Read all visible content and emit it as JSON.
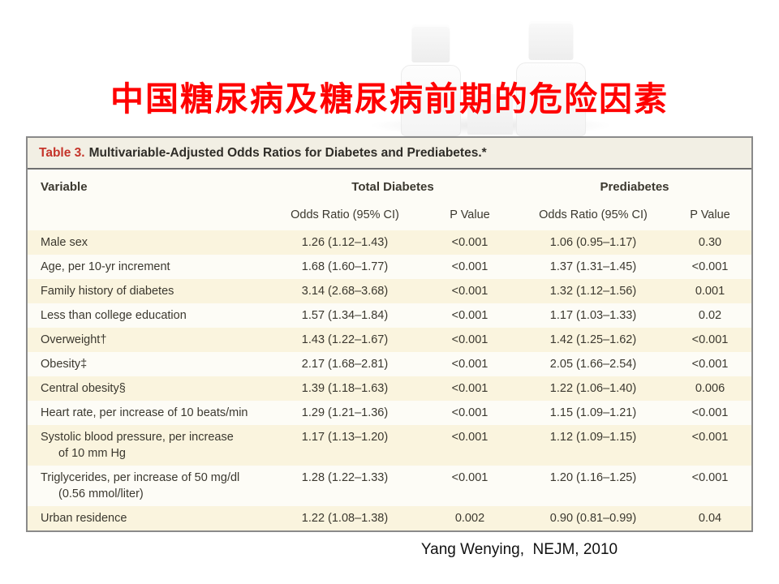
{
  "slide": {
    "title": "中国糖尿病及糖尿病前期的危险因素",
    "title_color": "#ff0000",
    "citation": "Yang Wenying,  NEJM, 2010",
    "background_icons": [
      "medicine-vial-icon",
      "medicine-vial-icon"
    ]
  },
  "table": {
    "label": "Table 3.",
    "label_color": "#c5342a",
    "caption": "Multivariable-Adjusted Odds Ratios for Diabetes and Prediabetes.*",
    "columns": {
      "variable": "Variable",
      "group1": "Total Diabetes",
      "group2": "Prediabetes",
      "odds_ratio": "Odds Ratio (95% CI)",
      "p_value": "P Value"
    },
    "colors": {
      "stripe": "#faf4de",
      "caption_bg": "#f2efe4",
      "border": "#8a8a8a",
      "text": "#3b382f"
    },
    "rows": [
      {
        "variable": "Male sex",
        "line2": "",
        "or1": "1.26 (1.12–1.43)",
        "p1": "<0.001",
        "or2": "1.06 (0.95–1.17)",
        "p2": "0.30"
      },
      {
        "variable": "Age, per 10-yr increment",
        "line2": "",
        "or1": "1.68 (1.60–1.77)",
        "p1": "<0.001",
        "or2": "1.37 (1.31–1.45)",
        "p2": "<0.001"
      },
      {
        "variable": "Family history of diabetes",
        "line2": "",
        "or1": "3.14 (2.68–3.68)",
        "p1": "<0.001",
        "or2": "1.32 (1.12–1.56)",
        "p2": "0.001"
      },
      {
        "variable": "Less than college education",
        "line2": "",
        "or1": "1.57 (1.34–1.84)",
        "p1": "<0.001",
        "or2": "1.17 (1.03–1.33)",
        "p2": "0.02"
      },
      {
        "variable": "Overweight†",
        "line2": "",
        "or1": "1.43 (1.22–1.67)",
        "p1": "<0.001",
        "or2": "1.42 (1.25–1.62)",
        "p2": "<0.001"
      },
      {
        "variable": "Obesity‡",
        "line2": "",
        "or1": "2.17 (1.68–2.81)",
        "p1": "<0.001",
        "or2": "2.05 (1.66–2.54)",
        "p2": "<0.001"
      },
      {
        "variable": "Central obesity§",
        "line2": "",
        "or1": "1.39 (1.18–1.63)",
        "p1": "<0.001",
        "or2": "1.22 (1.06–1.40)",
        "p2": "0.006"
      },
      {
        "variable": "Heart rate, per increase of 10 beats/min",
        "line2": "",
        "or1": "1.29 (1.21–1.36)",
        "p1": "<0.001",
        "or2": "1.15 (1.09–1.21)",
        "p2": "<0.001"
      },
      {
        "variable": "Systolic blood pressure, per increase",
        "line2": "of 10 mm Hg",
        "or1": "1.17 (1.13–1.20)",
        "p1": "<0.001",
        "or2": "1.12 (1.09–1.15)",
        "p2": "<0.001"
      },
      {
        "variable": "Triglycerides, per increase of 50 mg/dl",
        "line2": "(0.56 mmol/liter)",
        "or1": "1.28 (1.22–1.33)",
        "p1": "<0.001",
        "or2": "1.20 (1.16–1.25)",
        "p2": "<0.001"
      },
      {
        "variable": "Urban residence",
        "line2": "",
        "or1": "1.22 (1.08–1.38)",
        "p1": "0.002",
        "or2": "0.90 (0.81–0.99)",
        "p2": "0.04"
      }
    ]
  }
}
